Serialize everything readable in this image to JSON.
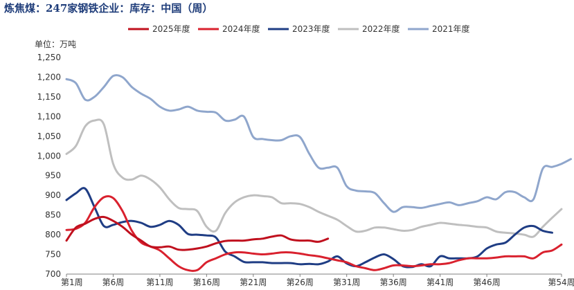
{
  "title": "炼焦煤：247家钢铁企业：库存：中国（周）",
  "unit_label": "单位：万吨",
  "colors": {
    "2025年度": "#c0101e",
    "2024年度": "#d9212e",
    "2023年度": "#1f3d84",
    "2022年度": "#bfbfbf",
    "2021年度": "#8fa6cc"
  },
  "chart_data": {
    "type": "line",
    "title": "炼焦煤：247家钢铁企业：库存：中国（周）",
    "xlabel": "",
    "ylabel": "单位：万吨",
    "ylim": [
      700,
      1250
    ],
    "yticks": [
      700,
      750,
      800,
      850,
      900,
      950,
      1000,
      1050,
      1100,
      1150,
      1200,
      1250
    ],
    "xlim": [
      1,
      54
    ],
    "xticks": [
      "第1周",
      "第6周",
      "第11周",
      "第16周",
      "第21周",
      "第26周",
      "第31周",
      "第36周",
      "第41周",
      "第46周",
      "第54周"
    ],
    "grid": false,
    "legend_position": "top",
    "series": [
      {
        "name": "2025年度",
        "values": [
          785,
          818,
          828,
          840,
          845,
          835,
          820,
          800,
          785,
          770,
          768,
          770,
          762,
          762,
          765,
          770,
          778,
          784,
          785,
          785,
          788,
          790,
          795,
          798,
          788,
          785,
          785,
          782,
          790
        ]
      },
      {
        "name": "2024年度",
        "values": [
          812,
          815,
          830,
          870,
          895,
          893,
          860,
          810,
          780,
          770,
          760,
          740,
          720,
          710,
          710,
          730,
          740,
          750,
          755,
          755,
          752,
          750,
          752,
          755,
          755,
          752,
          748,
          745,
          740,
          735,
          730,
          720,
          715,
          710,
          715,
          722,
          722,
          720,
          722,
          725,
          725,
          728,
          735,
          740,
          740,
          740,
          742,
          745,
          745,
          745,
          740,
          755,
          760,
          775
        ]
      },
      {
        "name": "2023年度",
        "values": [
          888,
          905,
          917,
          870,
          822,
          825,
          832,
          835,
          830,
          820,
          825,
          835,
          825,
          802,
          800,
          798,
          793,
          757,
          745,
          731,
          730,
          730,
          728,
          728,
          728,
          725,
          726,
          725,
          732,
          745,
          727,
          720,
          730,
          742,
          750,
          738,
          720,
          718,
          725,
          720,
          745,
          740,
          740,
          740,
          745,
          765,
          775,
          780,
          800,
          818,
          822,
          810,
          805
        ]
      },
      {
        "name": "2022年度",
        "values": [
          1005,
          1025,
          1075,
          1090,
          1080,
          980,
          945,
          940,
          950,
          940,
          920,
          890,
          868,
          865,
          860,
          820,
          810,
          855,
          882,
          895,
          900,
          898,
          895,
          880,
          880,
          878,
          870,
          858,
          848,
          838,
          822,
          808,
          810,
          818,
          818,
          814,
          810,
          812,
          820,
          825,
          830,
          828,
          825,
          823,
          820,
          818,
          808,
          805,
          803,
          800,
          795,
          820,
          843,
          865
        ]
      },
      {
        "name": "2021年度",
        "values": [
          1195,
          1185,
          1143,
          1150,
          1175,
          1203,
          1200,
          1175,
          1158,
          1145,
          1125,
          1115,
          1118,
          1125,
          1115,
          1112,
          1110,
          1090,
          1092,
          1100,
          1048,
          1043,
          1040,
          1040,
          1050,
          1048,
          1005,
          970,
          970,
          970,
          923,
          912,
          910,
          906,
          880,
          858,
          870,
          870,
          868,
          873,
          878,
          882,
          875,
          880,
          885,
          895,
          890,
          908,
          908,
          895,
          890,
          968,
          972,
          980,
          992
        ]
      }
    ]
  }
}
